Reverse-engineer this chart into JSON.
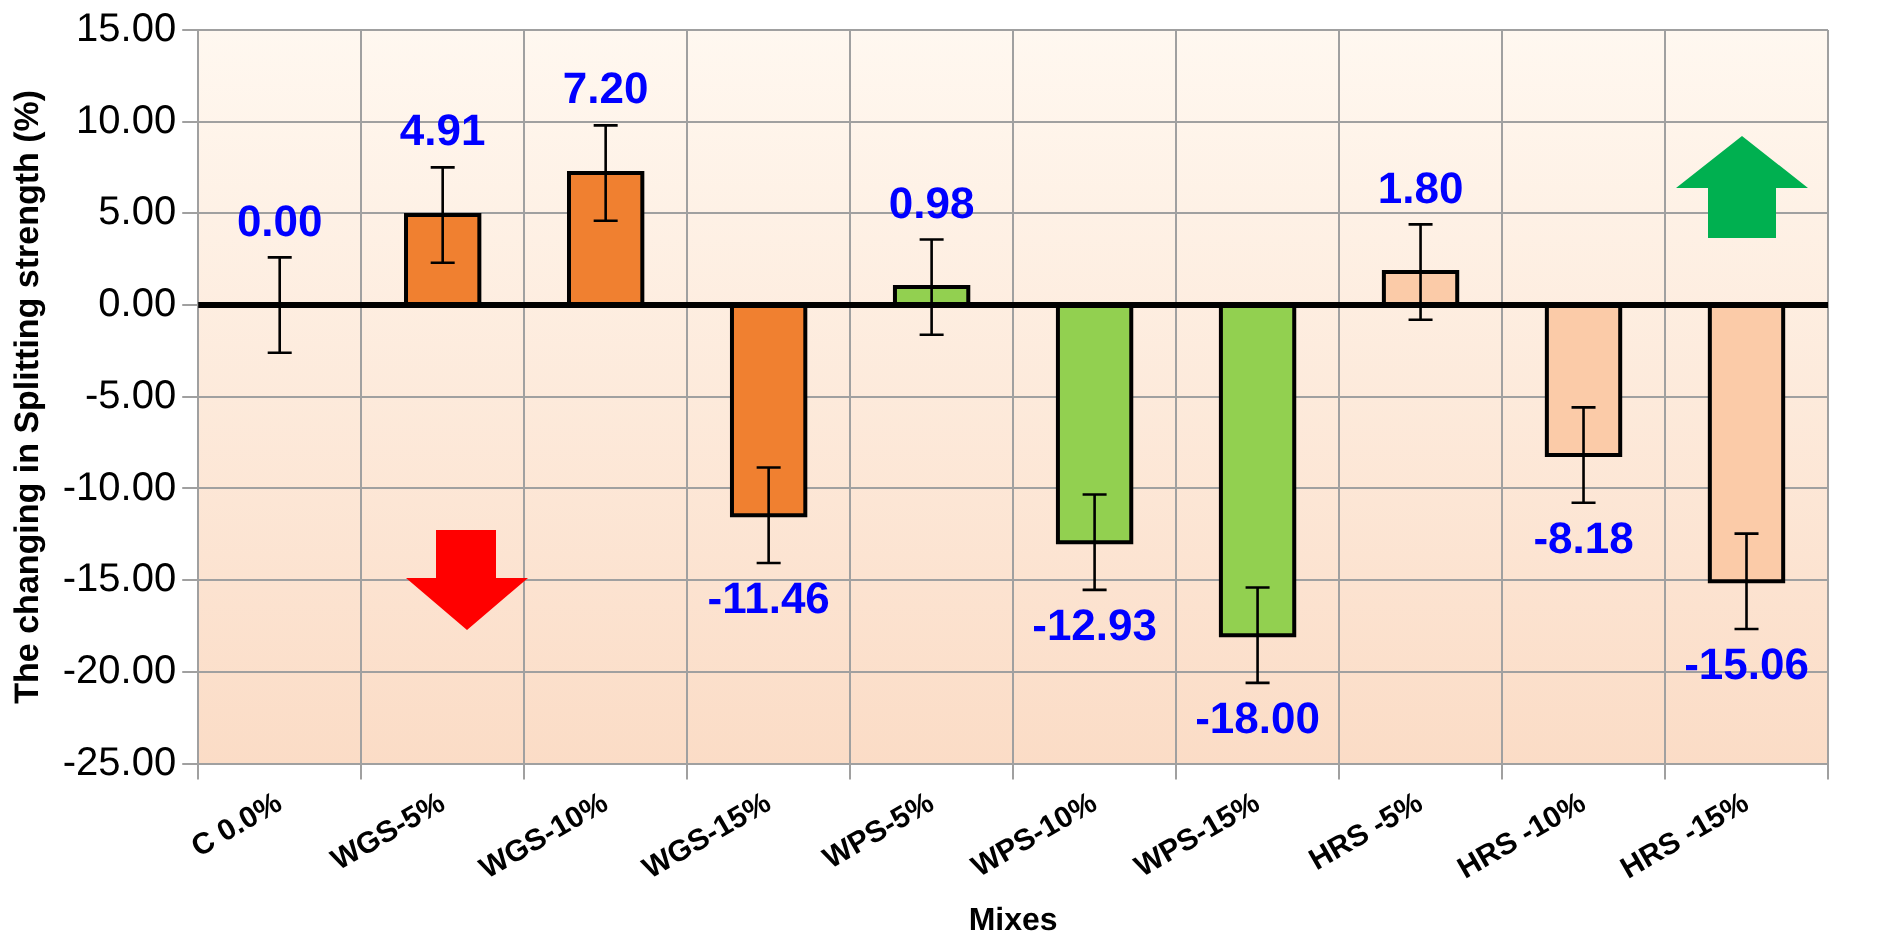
{
  "chart_data": {
    "type": "bar",
    "xlabel": "Mixes",
    "ylabel": "The changing in Splitting strength (%)",
    "categories": [
      "C 0.0%",
      "WGS-5%",
      "WGS-10%",
      "WGS-15%",
      "WPS-5%",
      "WPS-10%",
      "WPS-15%",
      "HRS -5%",
      "HRS -10%",
      "HRS -15%"
    ],
    "values": [
      0.0,
      4.91,
      7.2,
      -11.46,
      0.98,
      -12.93,
      -18.0,
      1.8,
      -8.18,
      -15.06
    ],
    "colors": [
      "#f08030",
      "#f08030",
      "#f08030",
      "#f08030",
      "#92d050",
      "#92d050",
      "#92d050",
      "#fbcba8",
      "#fbcba8",
      "#fbcba8"
    ],
    "errors": [
      2.6,
      2.6,
      2.6,
      2.6,
      2.6,
      2.6,
      2.6,
      2.6,
      2.6,
      2.6
    ],
    "value_labels": [
      "0.00",
      "4.91",
      "7.20",
      "-11.46",
      "0.98",
      "-12.93",
      "-18.00",
      "1.80",
      "-8.18",
      "-15.06"
    ],
    "ylim": [
      -25,
      15
    ],
    "yticks": [
      {
        "value": -25,
        "label": "-25.00"
      },
      {
        "value": -20,
        "label": "-20.00"
      },
      {
        "value": -15,
        "label": "-15.00"
      },
      {
        "value": -10,
        "label": "-10.00"
      },
      {
        "value": -5,
        "label": "-5.00"
      },
      {
        "value": 0,
        "label": "0.00"
      },
      {
        "value": 5,
        "label": "5.00"
      },
      {
        "value": 10,
        "label": "10.00"
      },
      {
        "value": 15,
        "label": "15.00"
      }
    ],
    "grid": true,
    "legend": false
  }
}
